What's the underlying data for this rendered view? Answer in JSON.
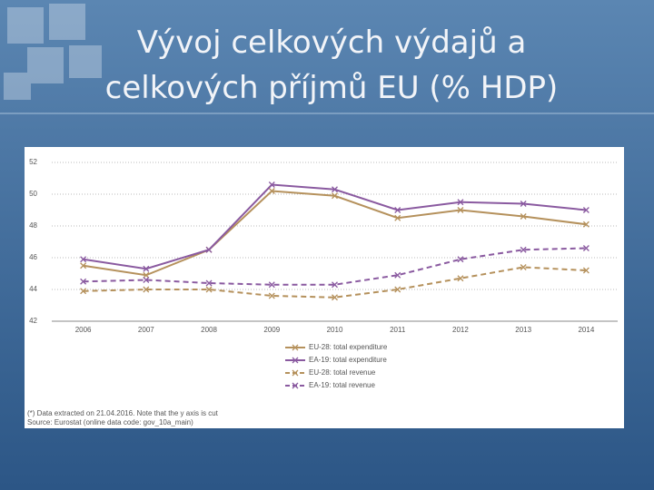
{
  "slide_title": [
    "Vývoj celkových výdajů a",
    "celkových příjmů EU (% HDP)"
  ],
  "chart_data": {
    "type": "line",
    "categories": [
      "2006",
      "2007",
      "2008",
      "2009",
      "2010",
      "2011",
      "2012",
      "2013",
      "2014"
    ],
    "series": [
      {
        "name": "EU-28: total expenditure",
        "color": "#b5915c",
        "dashed": false,
        "values": [
          45.5,
          44.9,
          46.5,
          50.2,
          49.9,
          48.5,
          49.0,
          48.6,
          48.1
        ]
      },
      {
        "name": "EA-19: total expenditure",
        "color": "#8a5aa0",
        "dashed": false,
        "values": [
          45.9,
          45.3,
          46.5,
          50.6,
          50.3,
          49.0,
          49.5,
          49.4,
          49.0
        ]
      },
      {
        "name": "EU-28: total revenue",
        "color": "#b5915c",
        "dashed": true,
        "values": [
          43.9,
          44.0,
          44.0,
          43.6,
          43.5,
          44.0,
          44.7,
          45.4,
          45.2
        ]
      },
      {
        "name": "EA-19: total revenue",
        "color": "#8a5aa0",
        "dashed": true,
        "values": [
          44.5,
          44.6,
          44.4,
          44.3,
          44.3,
          44.9,
          45.9,
          46.5,
          46.6
        ]
      }
    ],
    "ylim": [
      42,
      52
    ],
    "yticks": [
      42,
      44,
      46,
      48,
      50,
      52
    ],
    "grid": true,
    "notes": [
      "(*) Data extracted on 21.04.2016. Note that the y axis is cut",
      "Source: Eurostat (online data code: gov_10a_main)"
    ]
  }
}
